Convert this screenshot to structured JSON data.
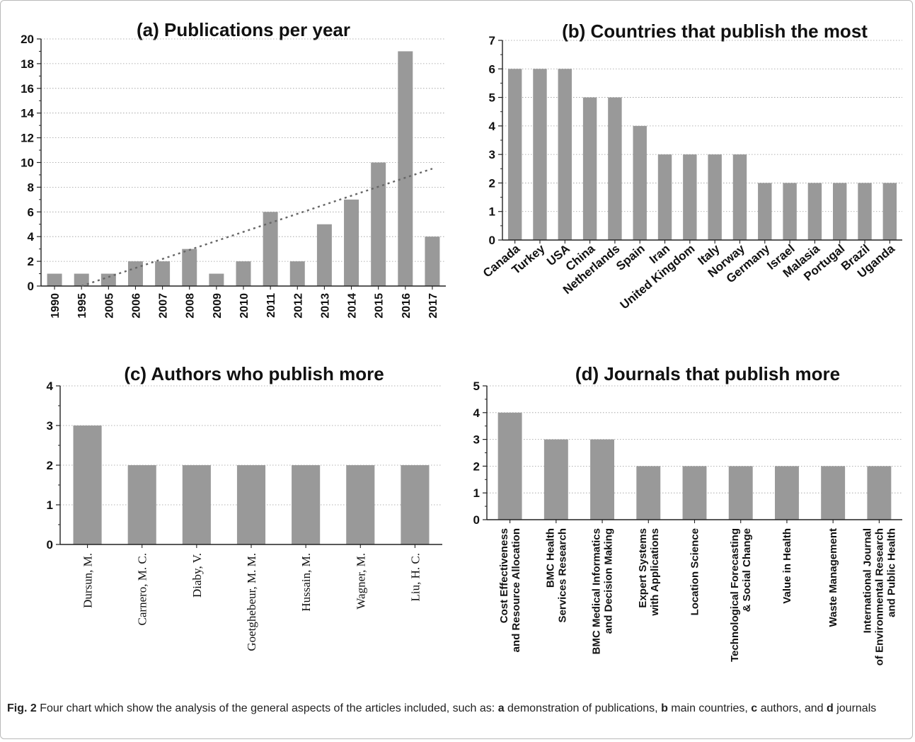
{
  "colors": {
    "bar": "#999999",
    "axis": "#222222",
    "grid": "#9a9a9a",
    "trend": "#666666"
  },
  "caption": {
    "label": "Fig. 2",
    "pre": " Four chart which show the analysis of the general aspects of the articles included, such as: ",
    "a_letter": "a",
    "a_text": " demonstration of publications, ",
    "b_letter": "b",
    "b_text": " main countries, ",
    "c_letter": "c",
    "c_text": " authors, and ",
    "d_letter": "d",
    "d_text": " journals"
  },
  "chart_data": [
    {
      "type": "bar",
      "panel": "a",
      "title": "(a)  Publications per year",
      "categories": [
        "1990",
        "1995",
        "2005",
        "2006",
        "2007",
        "2008",
        "2009",
        "2010",
        "2011",
        "2012",
        "2013",
        "2014",
        "2015",
        "2016",
        "2017"
      ],
      "values": [
        1,
        1,
        1,
        2,
        2,
        3,
        1,
        2,
        6,
        2,
        5,
        7,
        10,
        19,
        4
      ],
      "ylim": [
        0,
        20
      ],
      "yticks": [
        0,
        2,
        4,
        6,
        8,
        10,
        12,
        14,
        16,
        18,
        20
      ],
      "grid": true,
      "trendline": {
        "style": "dotted",
        "start_category": "1995",
        "start_value": 0,
        "end_category": "2017",
        "end_value": 9.5
      }
    },
    {
      "type": "bar",
      "panel": "b",
      "title": "(b)  Countries that publish the most",
      "categories": [
        "Canada",
        "Turkey",
        "USA",
        "China",
        "Netherlands",
        "Spain",
        "Iran",
        "United Kingdom",
        "Italy",
        "Norway",
        "Germany",
        "Israel",
        "Malasia",
        "Portugal",
        "Brazil",
        "Uganda"
      ],
      "values": [
        6,
        6,
        6,
        5,
        5,
        4,
        3,
        3,
        3,
        3,
        2,
        2,
        2,
        2,
        2,
        2
      ],
      "ylim": [
        0,
        7
      ],
      "yticks": [
        0,
        1,
        2,
        3,
        4,
        5,
        6,
        7
      ],
      "grid": true
    },
    {
      "type": "bar",
      "panel": "c",
      "title": "(c)  Authors who publish more",
      "categories": [
        "Dursun, M.",
        "Carnero, M. C.",
        "Diaby, V.",
        "Goetghebeur, M. M.",
        "Hussain, M.",
        "Wagner, M.",
        "Liu, H. C."
      ],
      "values": [
        3,
        2,
        2,
        2,
        2,
        2,
        2
      ],
      "ylim": [
        0,
        4
      ],
      "yticks": [
        0,
        1,
        2,
        3,
        4
      ],
      "grid": true
    },
    {
      "type": "bar",
      "panel": "d",
      "title": "(d)  Journals that publish more",
      "categories": [
        [
          "Cost Effectiveness",
          "and Resource Allocation"
        ],
        [
          "BMC Health",
          "Services Research"
        ],
        [
          "BMC Medical Informatics",
          "and Decision Making"
        ],
        [
          "Expert Systems",
          "with Applications"
        ],
        [
          "Location Science"
        ],
        [
          "Technological Forecasting",
          "& Social Change"
        ],
        [
          "Value in Health"
        ],
        [
          "Waste Management"
        ],
        [
          "International Journal",
          "of Environmental Research",
          "and Public Health"
        ]
      ],
      "values": [
        4,
        3,
        3,
        2,
        2,
        2,
        2,
        2,
        2
      ],
      "ylim": [
        0,
        5
      ],
      "yticks": [
        0,
        1,
        2,
        3,
        4,
        5
      ],
      "grid": true
    }
  ]
}
